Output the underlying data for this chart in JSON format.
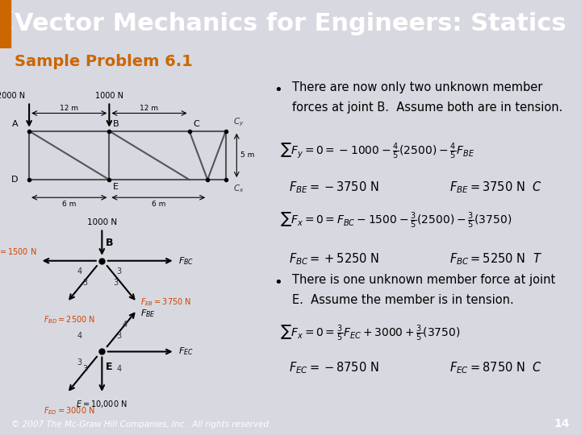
{
  "title": "Vector Mechanics for Engineers: Statics",
  "subtitle": "Sample Problem 6.1",
  "header_bg": "#4a5f7c",
  "header_text_color": "#ffffff",
  "subtitle_bg": "#d0d0d8",
  "subtitle_text_color": "#cc6600",
  "body_bg": "#d8d8e0",
  "left_sidebar_color": "#cc6600",
  "bullet1_line1": "There are now only two unknown member",
  "bullet1_line2": "forces at joint B.  Assume both are in tension.",
  "bullet2_line1": "There is one unknown member force at joint",
  "bullet2_line2": "E.  Assume the member is in tension.",
  "footer_text": "© 2007 The Mc-Graw Hill Companies, Inc.  All rights reserved.",
  "page_number": "14",
  "footer_bg": "#4a5f7c",
  "footer_text_color": "#ffffff"
}
